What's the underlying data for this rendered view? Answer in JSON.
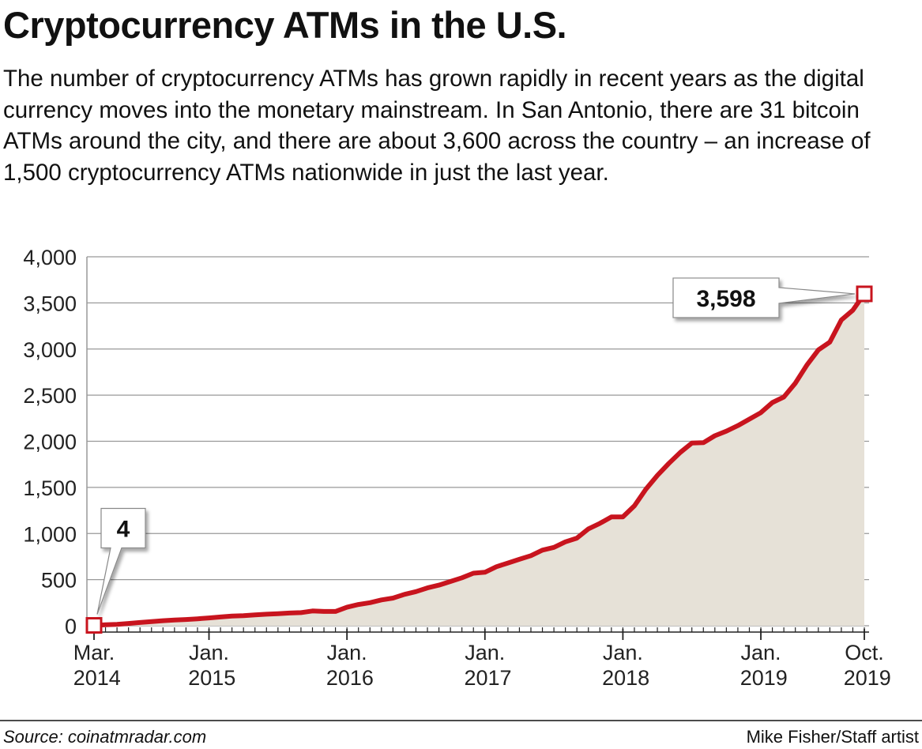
{
  "chart_data": {
    "type": "area",
    "title": "Cryptocurrency ATMs in the U.S.",
    "subtitle": "The number of cryptocurrency ATMs has grown rapidly in recent years as the digital currency moves into the monetary mainstream. In San Antonio, there are 31 bitcoin ATMs around the city, and there are about 3,600 across the country – an increase of 1,500 cryptocurrency ATMs nationwide in just the last year.",
    "source": "Source: coinatmradar.com",
    "credit": "Mike Fisher/Staff artist",
    "x": [
      "2014-03",
      "2014-04",
      "2014-05",
      "2014-06",
      "2014-07",
      "2014-08",
      "2014-09",
      "2014-10",
      "2014-11",
      "2014-12",
      "2015-01",
      "2015-02",
      "2015-03",
      "2015-04",
      "2015-05",
      "2015-06",
      "2015-07",
      "2015-08",
      "2015-09",
      "2015-10",
      "2015-11",
      "2015-12",
      "2016-01",
      "2016-02",
      "2016-03",
      "2016-04",
      "2016-05",
      "2016-06",
      "2016-07",
      "2016-08",
      "2016-09",
      "2016-10",
      "2016-11",
      "2016-12",
      "2017-01",
      "2017-02",
      "2017-03",
      "2017-04",
      "2017-05",
      "2017-06",
      "2017-07",
      "2017-08",
      "2017-09",
      "2017-10",
      "2017-11",
      "2017-12",
      "2018-01",
      "2018-02",
      "2018-03",
      "2018-04",
      "2018-05",
      "2018-06",
      "2018-07",
      "2018-08",
      "2018-09",
      "2018-10",
      "2018-11",
      "2018-12",
      "2019-01",
      "2019-02",
      "2019-03",
      "2019-04",
      "2019-05",
      "2019-06",
      "2019-07",
      "2019-08",
      "2019-09",
      "2019-10"
    ],
    "series": [
      {
        "color": "#c8141e",
        "fill": "#e6e1d7",
        "values": [
          4,
          10,
          15,
          25,
          35,
          45,
          55,
          62,
          68,
          75,
          85,
          95,
          105,
          110,
          118,
          125,
          130,
          138,
          142,
          160,
          155,
          155,
          200,
          230,
          250,
          280,
          300,
          340,
          370,
          410,
          440,
          480,
          520,
          570,
          580,
          640,
          680,
          720,
          760,
          820,
          850,
          910,
          950,
          1050,
          1110,
          1180,
          1180,
          1300,
          1480,
          1630,
          1760,
          1880,
          1980,
          1985,
          2060,
          2110,
          2170,
          2240,
          2310,
          2420,
          2480,
          2630,
          2825,
          2990,
          3075,
          3315,
          3420,
          3598
        ],
        "value_labels": [
          "4",
          null,
          null,
          null,
          null,
          null,
          null,
          null,
          null,
          null,
          null,
          null,
          null,
          null,
          null,
          null,
          null,
          null,
          null,
          null,
          null,
          null,
          null,
          null,
          null,
          null,
          null,
          null,
          null,
          null,
          null,
          null,
          null,
          null,
          null,
          null,
          null,
          null,
          null,
          null,
          null,
          null,
          null,
          null,
          null,
          null,
          null,
          null,
          null,
          null,
          null,
          null,
          null,
          null,
          null,
          null,
          null,
          null,
          null,
          null,
          null,
          null,
          null,
          null,
          null,
          null,
          null,
          "3,598"
        ]
      }
    ],
    "xlim": [
      "2014-03",
      "2019-10"
    ],
    "xticks": [
      {
        "value": "2014-03",
        "label": "Mar. 2014"
      },
      {
        "value": "2015-01",
        "label": "Jan. 2015"
      },
      {
        "value": "2016-01",
        "label": "Jan. 2016"
      },
      {
        "value": "2017-01",
        "label": "Jan. 2017"
      },
      {
        "value": "2018-01",
        "label": "Jan. 2018"
      },
      {
        "value": "2019-01",
        "label": "Jan. 2019"
      },
      {
        "value": "2019-10",
        "label": "Oct. 2019"
      }
    ],
    "ylim": [
      0,
      4000
    ],
    "yticks": [
      0,
      500,
      {
        "value": 1000,
        "label": "1,000"
      },
      {
        "value": 1500,
        "label": "1,500"
      },
      {
        "value": 2000,
        "label": "2,000"
      },
      {
        "value": 2500,
        "label": "2,500"
      },
      {
        "value": 3000,
        "label": "3,000"
      },
      {
        "value": 3500,
        "label": "3,500"
      },
      {
        "value": 4000,
        "label": "4,000"
      }
    ],
    "grid": true
  }
}
